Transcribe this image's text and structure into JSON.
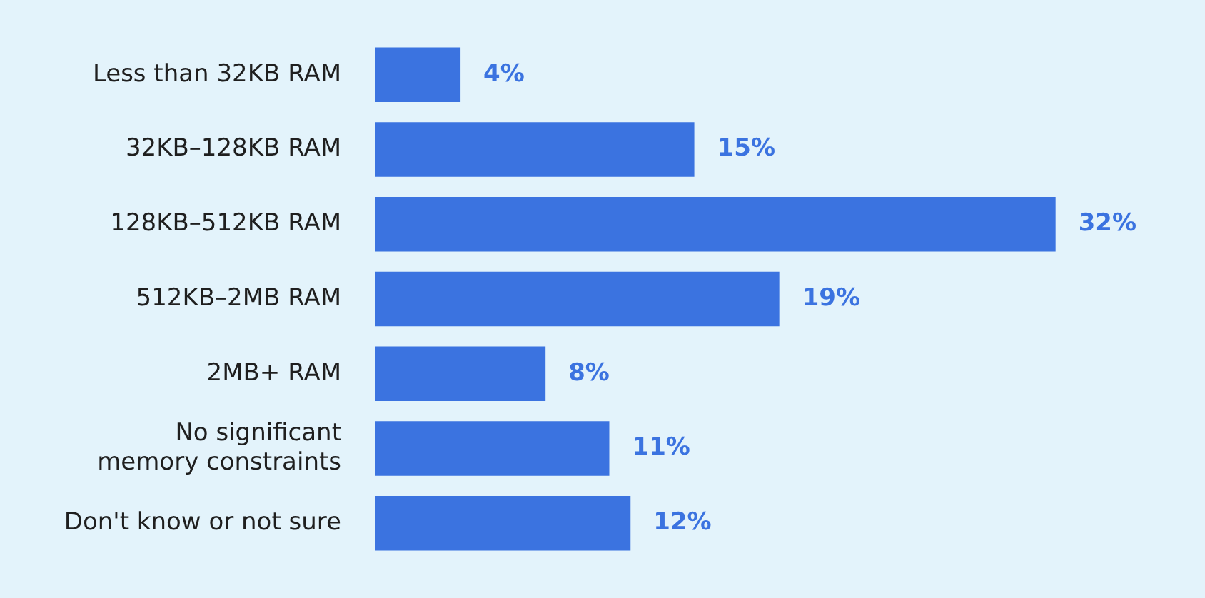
{
  "chart_data": {
    "type": "bar",
    "orientation": "horizontal",
    "categories": [
      "Less than 32KB RAM",
      "32KB–128KB RAM",
      "128KB–512KB RAM",
      "512KB–2MB RAM",
      "2MB+ RAM",
      "No significant memory constraints",
      "Don't know or not sure"
    ],
    "values": [
      4,
      15,
      32,
      19,
      8,
      11,
      12
    ],
    "value_labels": [
      "4%",
      "15%",
      "32%",
      "19%",
      "8%",
      "11%",
      "12%"
    ],
    "color": "#3b73e0"
  }
}
